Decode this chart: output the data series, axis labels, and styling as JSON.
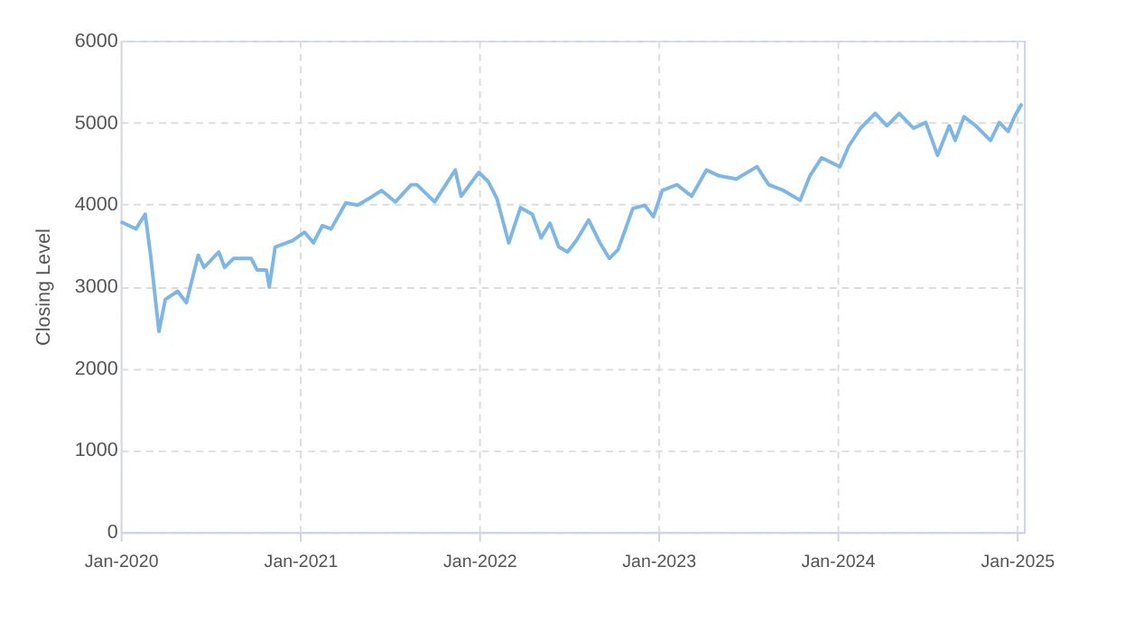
{
  "chart_data": {
    "type": "line",
    "ylabel": "Closing Level",
    "x": [
      "2020-01-01",
      "2020-02-01",
      "2020-02-20",
      "2020-03-02",
      "2020-03-19",
      "2020-04-01",
      "2020-04-26",
      "2020-05-14",
      "2020-06-07",
      "2020-06-19",
      "2020-07-19",
      "2020-07-31",
      "2020-08-18",
      "2020-09-23",
      "2020-10-05",
      "2020-10-24",
      "2020-10-30",
      "2020-11-11",
      "2020-12-17",
      "2021-01-10",
      "2021-01-28",
      "2021-02-15",
      "2021-03-05",
      "2021-04-04",
      "2021-04-28",
      "2021-05-21",
      "2021-06-16",
      "2021-07-14",
      "2021-08-15",
      "2021-08-27",
      "2021-10-02",
      "2021-11-13",
      "2021-11-25",
      "2021-12-31",
      "2022-01-19",
      "2022-02-06",
      "2022-03-02",
      "2022-03-26",
      "2022-04-19",
      "2022-05-07",
      "2022-05-25",
      "2022-06-12",
      "2022-06-30",
      "2022-07-18",
      "2022-08-12",
      "2022-09-04",
      "2022-09-23",
      "2022-10-11",
      "2022-11-10",
      "2022-12-04",
      "2022-12-22",
      "2023-01-09",
      "2023-02-08",
      "2023-03-10",
      "2023-04-09",
      "2023-05-04",
      "2023-06-09",
      "2023-07-21",
      "2023-08-14",
      "2023-09-13",
      "2023-10-17",
      "2023-11-06",
      "2023-11-30",
      "2024-01-06",
      "2024-01-24",
      "2024-02-17",
      "2024-03-18",
      "2024-04-11",
      "2024-05-06",
      "2024-06-04",
      "2024-06-29",
      "2024-07-23",
      "2024-08-16",
      "2024-08-28",
      "2024-09-15",
      "2024-10-09",
      "2024-11-08",
      "2024-11-26",
      "2024-12-14",
      "2024-12-27",
      "2025-01-11"
    ],
    "series": [
      {
        "color": "#7eb6e6",
        "values": [
          3790,
          3700,
          3880,
          3380,
          2450,
          2840,
          2940,
          2800,
          3380,
          3230,
          3420,
          3230,
          3340,
          3340,
          3200,
          3200,
          2990,
          3480,
          3560,
          3660,
          3530,
          3740,
          3700,
          4020,
          3990,
          4070,
          4170,
          4030,
          4240,
          4240,
          4030,
          4420,
          4100,
          4390,
          4280,
          4070,
          3530,
          3960,
          3880,
          3590,
          3770,
          3480,
          3420,
          3560,
          3810,
          3530,
          3340,
          3450,
          3950,
          3990,
          3850,
          4170,
          4240,
          4100,
          4420,
          4350,
          4310,
          4460,
          4240,
          4170,
          4050,
          4350,
          4570,
          4460,
          4710,
          4930,
          5110,
          4960,
          5110,
          4930,
          5000,
          4600,
          4960,
          4780,
          5070,
          4960,
          4780,
          5000,
          4890,
          5070,
          5230
        ]
      }
    ],
    "xlim": [
      "2020-01-01",
      "2025-01-15"
    ],
    "xticks": [
      {
        "value": "2020-01-01",
        "label": "Jan-2020"
      },
      {
        "value": "2021-01-01",
        "label": "Jan-2021"
      },
      {
        "value": "2022-01-01",
        "label": "Jan-2022"
      },
      {
        "value": "2023-01-01",
        "label": "Jan-2023"
      },
      {
        "value": "2024-01-01",
        "label": "Jan-2024"
      },
      {
        "value": "2025-01-01",
        "label": "Jan-2025"
      }
    ],
    "ylim": [
      0,
      6000
    ],
    "yticks": [
      0,
      1000,
      2000,
      3000,
      4000,
      5000,
      6000
    ],
    "grid": true,
    "line_style": "solid"
  }
}
